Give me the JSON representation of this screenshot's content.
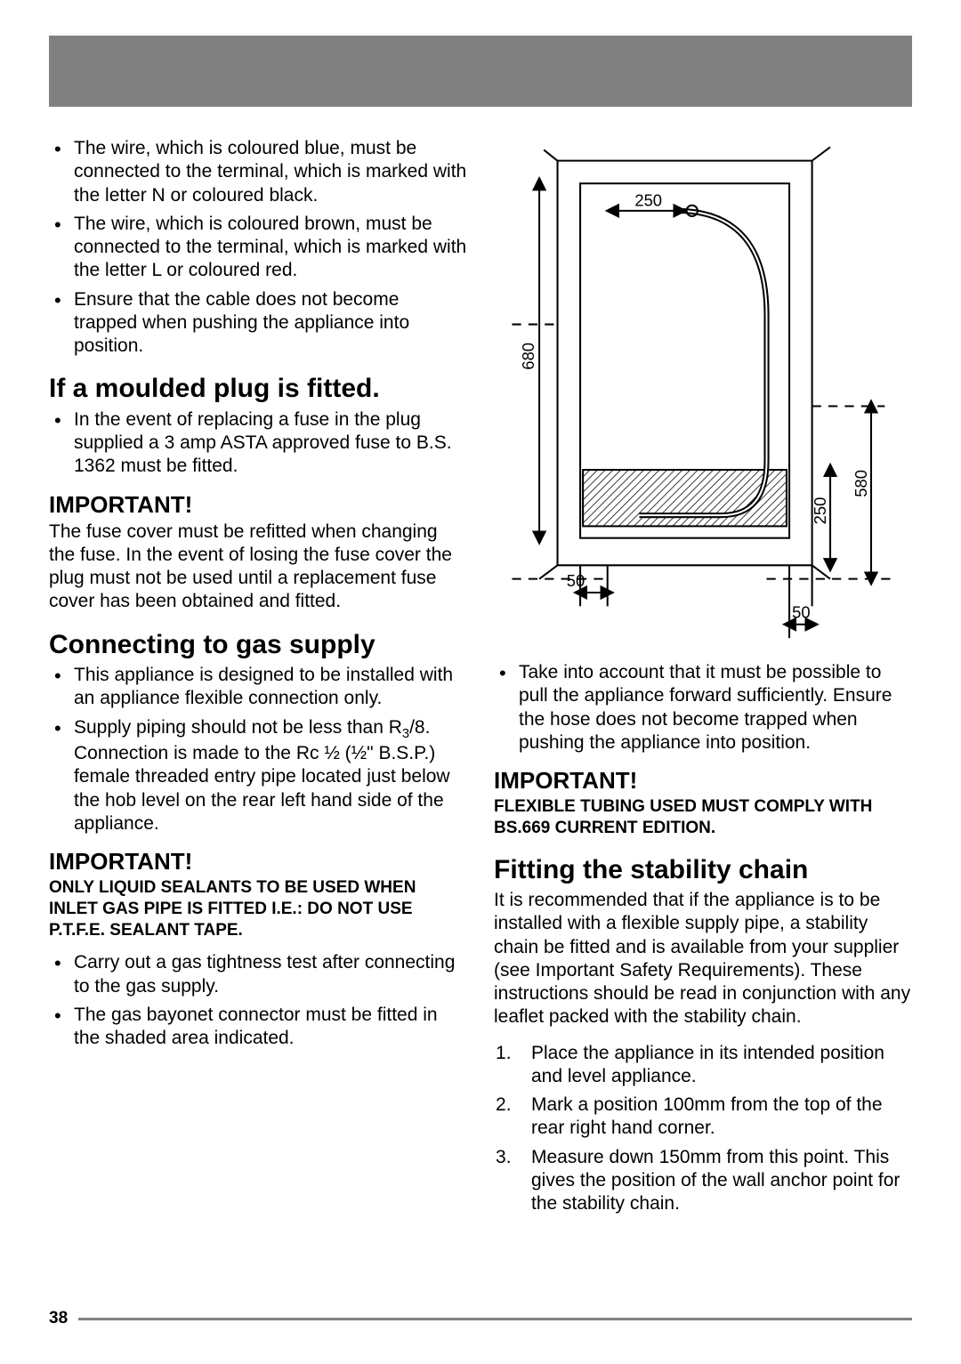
{
  "leftColumn": {
    "bullets1": [
      "The wire, which is coloured blue, must be connected to the terminal, which is marked with the letter N or coloured black.",
      "The wire, which is coloured brown, must be connected to the terminal, which is marked with the letter L or coloured red.",
      "Ensure that the cable does not become trapped when pushing the appliance into position."
    ],
    "h2_plug": "If a moulded plug is fitted.",
    "bullets2": [
      "In the event of replacing a fuse in the plug supplied a 3 amp ASTA approved fuse to B.S. 1362 must be fitted."
    ],
    "important1_heading": "IMPORTANT!",
    "important1_text": "The fuse cover must be refitted when changing the fuse. In the event of losing the fuse cover the plug must not be used until a replacement fuse cover has been obtained and fitted.",
    "h2_gas": "Connecting to gas supply",
    "bullets3_item1": "This appliance is designed to be installed with an appliance flexible connection only.",
    "bullets3_item2_html": "Supply piping should not be less than R<sub>3</sub>/8. Connection is made to the Rc ½ (½\" B.S.P.) female threaded entry pipe located just below the hob level on the rear left hand side of the appliance.",
    "important2_heading": "IMPORTANT!",
    "important2_text": "ONLY LIQUID SEALANTS TO BE USED WHEN INLET GAS PIPE IS FITTED I.E.: DO NOT USE P.T.F.E. SEALANT TAPE.",
    "bullets4": [
      "Carry out a gas tightness test after connecting to the gas supply.",
      "The gas bayonet connector must be fitted in the shaded area indicated."
    ]
  },
  "rightColumn": {
    "bullets1": [
      "Take into account that it must be possible to pull the appliance forward sufficiently. Ensure the hose does not become trapped when pushing the appliance into position."
    ],
    "important1_heading": "IMPORTANT!",
    "important1_text": "FLEXIBLE TUBING USED MUST COMPLY WITH BS.669 CURRENT EDITION.",
    "h2_chain": "Fitting the stability chain",
    "chain_text": "It is recommended that if the appliance is to be installed with a flexible supply pipe, a stability chain be fitted and is available from your supplier (see Important Safety Requirements). These instructions should be read in conjunction with any leaflet packed with the stability chain.",
    "ol": [
      "Place the appliance in its intended position and level appliance.",
      "Mark a position 100mm from the top of the rear right hand corner.",
      "Measure down 150mm from this point. This gives the position of the wall anchor point for the stability chain."
    ]
  },
  "diagram": {
    "labels": {
      "d250a": "250",
      "d680": "680",
      "d50a": "50",
      "d580": "580",
      "d250b": "250",
      "d50b": "50"
    },
    "colors": {
      "stroke": "#000000",
      "hatch": "#000000"
    }
  },
  "pageNumber": "38"
}
